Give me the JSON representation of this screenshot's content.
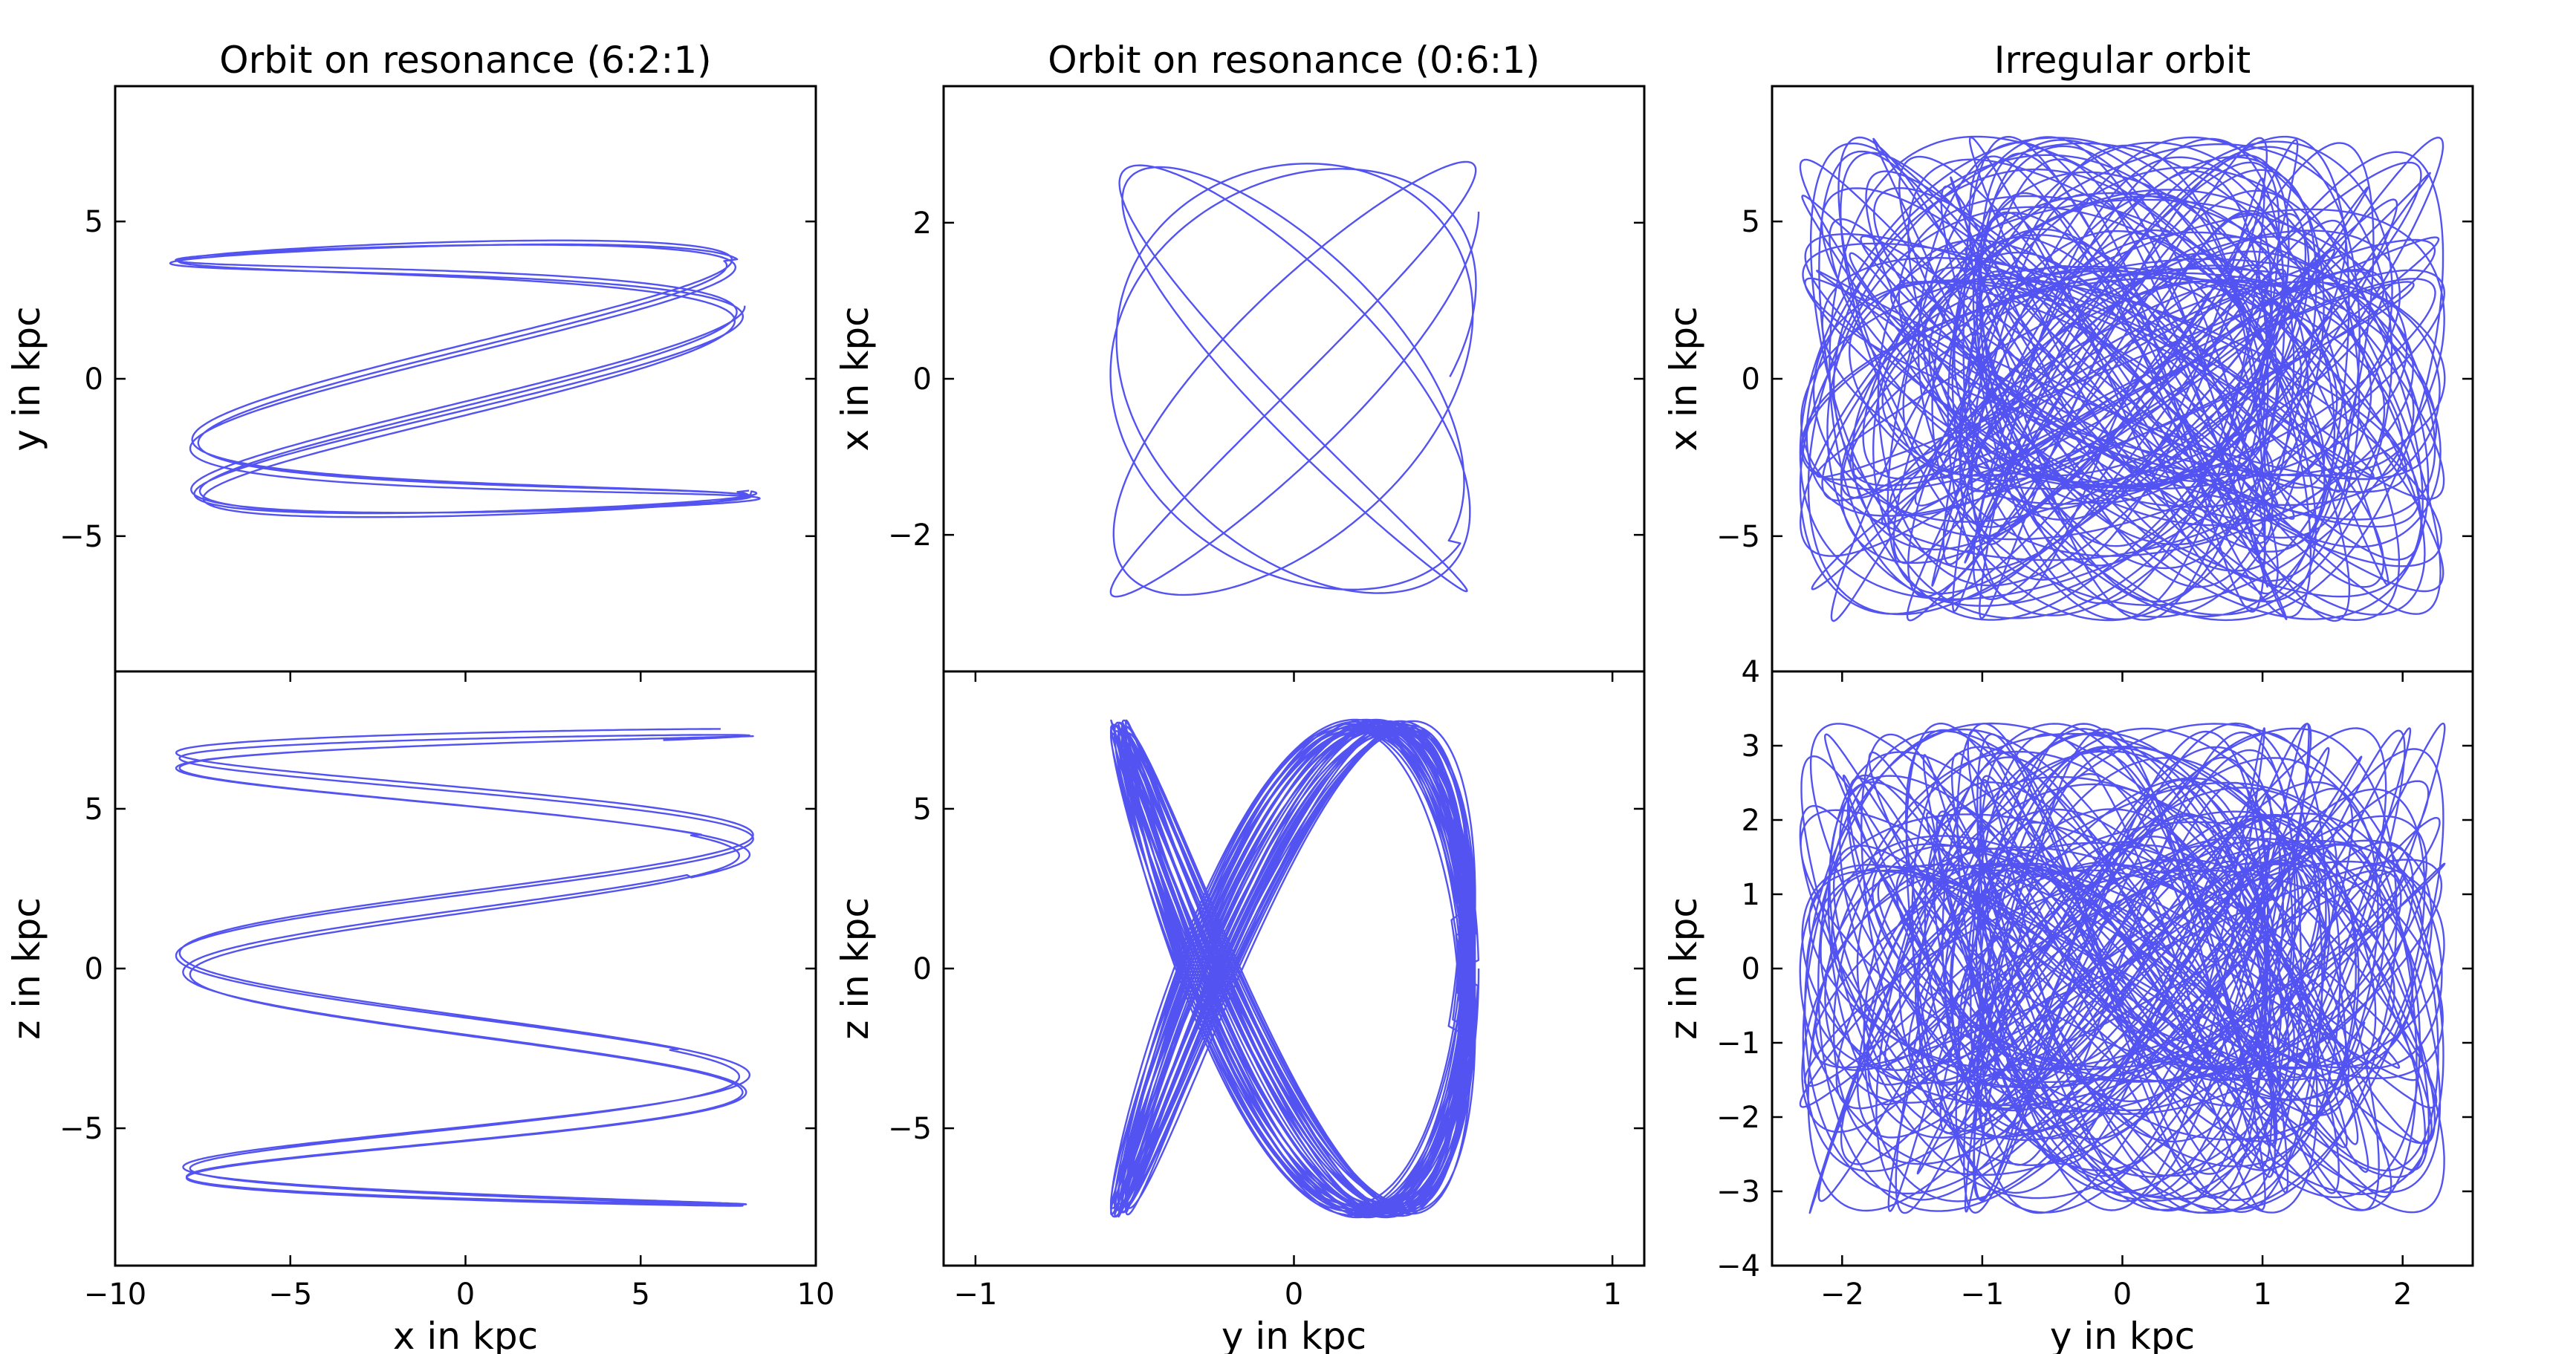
{
  "colors": {
    "orbit": "#4a4af0",
    "axes": "#000000",
    "background": "#ffffff"
  },
  "chart_data": [
    {
      "type": "line",
      "panel": "top-left",
      "title": "Orbit on resonance (6:2:1)",
      "xlabel": "",
      "ylabel": "y in kpc",
      "xlim": [
        -10,
        10
      ],
      "ylim": [
        -9.3,
        9.3
      ],
      "xticks": [],
      "yticks": [
        -5,
        0,
        5
      ],
      "yticklabels": [
        "−5",
        "0",
        "5"
      ],
      "grid": false,
      "orbit": {
        "kind": "lissajous",
        "ax": 8.2,
        "ay": 4.6,
        "fx": 6,
        "fy": 2,
        "phx": 0.0,
        "phy": 1.2,
        "rot": 0.15,
        "turns": 10,
        "dphase": 0.03,
        "damp": 0.05
      }
    },
    {
      "type": "line",
      "panel": "bottom-left",
      "title": "",
      "xlabel": "x in kpc",
      "ylabel": "z in kpc",
      "xlim": [
        -10,
        10
      ],
      "ylim": [
        -9.3,
        9.3
      ],
      "xticks": [
        -10,
        -5,
        0,
        5,
        10
      ],
      "xticklabels": [
        "−10",
        "−5",
        "0",
        "5",
        "10"
      ],
      "yticks": [
        -5,
        0,
        5
      ],
      "yticklabels": [
        "−5",
        "0",
        "5"
      ],
      "grid": false,
      "orbit": {
        "kind": "lissajous",
        "ax": 8.3,
        "ay": 7.5,
        "fx": 6,
        "fy": 1,
        "phx": 0.5,
        "phy": 0.0,
        "rot": 0.0,
        "turns": 12,
        "dphase": 0.025,
        "damp": 0.06
      }
    },
    {
      "type": "line",
      "panel": "top-middle",
      "title": "Orbit on resonance (0:6:1)",
      "xlabel": "",
      "ylabel": "x in kpc",
      "xlim": [
        -1.1,
        1.1
      ],
      "ylim": [
        -3.75,
        3.75
      ],
      "xticks": [],
      "yticks": [
        -2,
        0,
        2
      ],
      "yticklabels": [
        "−2",
        "0",
        "2"
      ],
      "grid": false,
      "orbit": {
        "kind": "lissajous",
        "ax": 0.58,
        "ay": 2.8,
        "fx": 13,
        "fy": 11,
        "phx": 0.0,
        "phy": 0.7,
        "rot": 0.0,
        "turns": 6,
        "dphase": 0.09,
        "damp": 0.08
      }
    },
    {
      "type": "line",
      "panel": "bottom-middle",
      "title": "",
      "xlabel": "y in kpc",
      "ylabel": "z in kpc",
      "xlim": [
        -1.1,
        1.1
      ],
      "ylim": [
        -9.3,
        9.3
      ],
      "xticks": [
        -1,
        0,
        1
      ],
      "xticklabels": [
        "−1",
        "0",
        "1"
      ],
      "yticks": [
        -5,
        0,
        5
      ],
      "yticklabels": [
        "−5",
        "0",
        "5"
      ],
      "grid": false,
      "orbit": {
        "kind": "lissajous",
        "ax": 0.58,
        "ay": 7.8,
        "fx": 2,
        "fy": 3,
        "phx": 0.0,
        "phy": 1.5708,
        "rot": 0.0,
        "turns": 40,
        "dphase": 0.01,
        "damp": 0.1
      }
    },
    {
      "type": "line",
      "panel": "top-right",
      "title": "Irregular orbit",
      "xlabel": "",
      "ylabel": "x in kpc",
      "xlim": [
        -2.5,
        2.5
      ],
      "ylim": [
        -9.3,
        9.3
      ],
      "xticks": [],
      "yticks": [
        -5,
        0,
        5
      ],
      "yticklabels": [
        "−5",
        "0",
        "5"
      ],
      "grid": false,
      "orbit": {
        "kind": "chaotic",
        "ax": 2.3,
        "ay": 7.7,
        "fx": 1.0,
        "fy": 1.414,
        "f2": 0.61,
        "f3": 0.37,
        "turns": 90,
        "seed": 3
      }
    },
    {
      "type": "line",
      "panel": "bottom-right",
      "title": "",
      "xlabel": "y in kpc",
      "ylabel": "z in kpc",
      "xlim": [
        -2.5,
        2.5
      ],
      "ylim": [
        -4,
        4
      ],
      "xticks": [
        -2,
        -1,
        0,
        1,
        2
      ],
      "xticklabels": [
        "−2",
        "−1",
        "0",
        "1",
        "2"
      ],
      "yticks": [
        -4,
        -3,
        -2,
        -1,
        0,
        1,
        2,
        3,
        4
      ],
      "yticklabels": [
        "−4",
        "−3",
        "−2",
        "−1",
        "0",
        "1",
        "2",
        "3",
        "4"
      ],
      "grid": false,
      "orbit": {
        "kind": "chaotic",
        "ax": 2.3,
        "ay": 3.3,
        "fx": 1.0,
        "fy": 1.732,
        "f2": 0.53,
        "f3": 0.29,
        "turns": 90,
        "seed": 7
      }
    }
  ]
}
